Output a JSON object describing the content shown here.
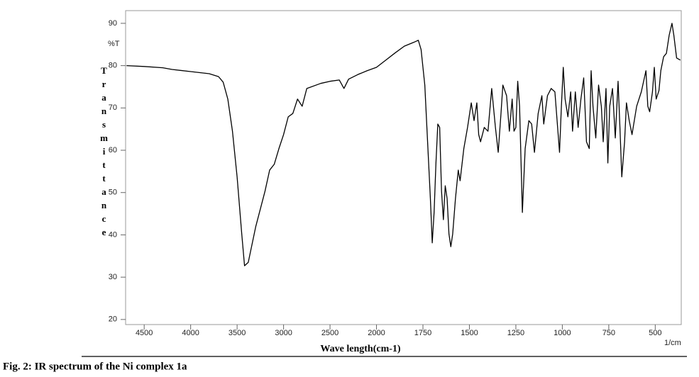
{
  "chart_data": {
    "type": "line",
    "ylabel": "Transmittance",
    "yunit": "%T",
    "xlabel": "Wave length(cm-1)",
    "xunit": "1/cm",
    "caption": "Fig. 2: IR spectrum of the Ni complex 1a",
    "color": "#000000",
    "xlim": [
      4700,
      360
    ],
    "xticks": [
      4500,
      4000,
      3500,
      3000,
      2500,
      2000,
      1750,
      1500,
      1250,
      1000,
      750,
      500
    ],
    "ylim": [
      18.8,
      93
    ],
    "yticks": [
      20,
      30,
      40,
      50,
      60,
      70,
      80,
      90
    ],
    "x": [
      4690,
      4500,
      4300,
      4200,
      4000,
      3800,
      3700,
      3650,
      3600,
      3550,
      3500,
      3450,
      3420,
      3380,
      3300,
      3200,
      3150,
      3100,
      3050,
      3000,
      2950,
      2900,
      2850,
      2800,
      2750,
      2600,
      2500,
      2400,
      2350,
      2300,
      2200,
      2100,
      2000,
      1950,
      1900,
      1850,
      1800,
      1775,
      1760,
      1740,
      1725,
      1710,
      1700,
      1690,
      1680,
      1670,
      1660,
      1650,
      1640,
      1630,
      1620,
      1610,
      1600,
      1590,
      1575,
      1560,
      1550,
      1530,
      1510,
      1490,
      1475,
      1460,
      1450,
      1440,
      1420,
      1400,
      1380,
      1360,
      1345,
      1330,
      1320,
      1300,
      1285,
      1270,
      1260,
      1250,
      1240,
      1230,
      1215,
      1200,
      1180,
      1165,
      1150,
      1130,
      1110,
      1100,
      1080,
      1060,
      1040,
      1015,
      1005,
      995,
      985,
      970,
      955,
      945,
      930,
      915,
      900,
      885,
      870,
      855,
      845,
      835,
      820,
      805,
      790,
      780,
      765,
      755,
      745,
      730,
      715,
      700,
      690,
      680,
      665,
      655,
      640,
      625,
      600,
      575,
      550,
      540,
      530,
      515,
      505,
      495,
      480,
      470,
      455,
      440,
      425,
      410,
      400,
      385,
      365
    ],
    "values": [
      80.0,
      79.8,
      79.5,
      79.1,
      78.6,
      78.1,
      77.4,
      76.1,
      72.1,
      64.5,
      53.7,
      40.2,
      32.7,
      33.5,
      41.9,
      50.3,
      55.3,
      56.7,
      60.4,
      63.7,
      67.9,
      68.7,
      72.1,
      70.4,
      74.6,
      75.8,
      76.3,
      76.6,
      74.6,
      76.8,
      77.9,
      78.8,
      79.6,
      81.3,
      83.0,
      84.6,
      85.5,
      86.0,
      83.8,
      75.4,
      62.0,
      48.6,
      38.1,
      45.3,
      57.0,
      66.2,
      65.4,
      50.3,
      43.6,
      51.6,
      48.6,
      40.2,
      37.2,
      40.2,
      48.6,
      55.3,
      52.8,
      60.4,
      65.4,
      71.2,
      67.0,
      71.2,
      63.7,
      62.0,
      65.4,
      64.5,
      74.6,
      65.4,
      59.5,
      68.7,
      75.4,
      72.9,
      64.5,
      72.1,
      64.5,
      65.4,
      76.3,
      70.4,
      45.3,
      60.4,
      67.0,
      66.2,
      59.5,
      68.7,
      72.9,
      66.2,
      72.9,
      74.6,
      73.8,
      59.5,
      70.4,
      79.6,
      72.1,
      67.9,
      73.8,
      64.5,
      73.8,
      65.4,
      72.1,
      77.1,
      62.0,
      60.4,
      78.8,
      70.4,
      62.9,
      75.4,
      70.4,
      62.0,
      74.6,
      57.0,
      70.4,
      74.6,
      62.9,
      76.3,
      65.4,
      53.7,
      62.0,
      71.2,
      67.0,
      63.7,
      70.4,
      73.8,
      78.8,
      70.4,
      69.1,
      73.8,
      79.6,
      72.1,
      74.1,
      78.8,
      82.1,
      82.9,
      87.2,
      90.0,
      87.2,
      81.8,
      81.3
    ]
  }
}
